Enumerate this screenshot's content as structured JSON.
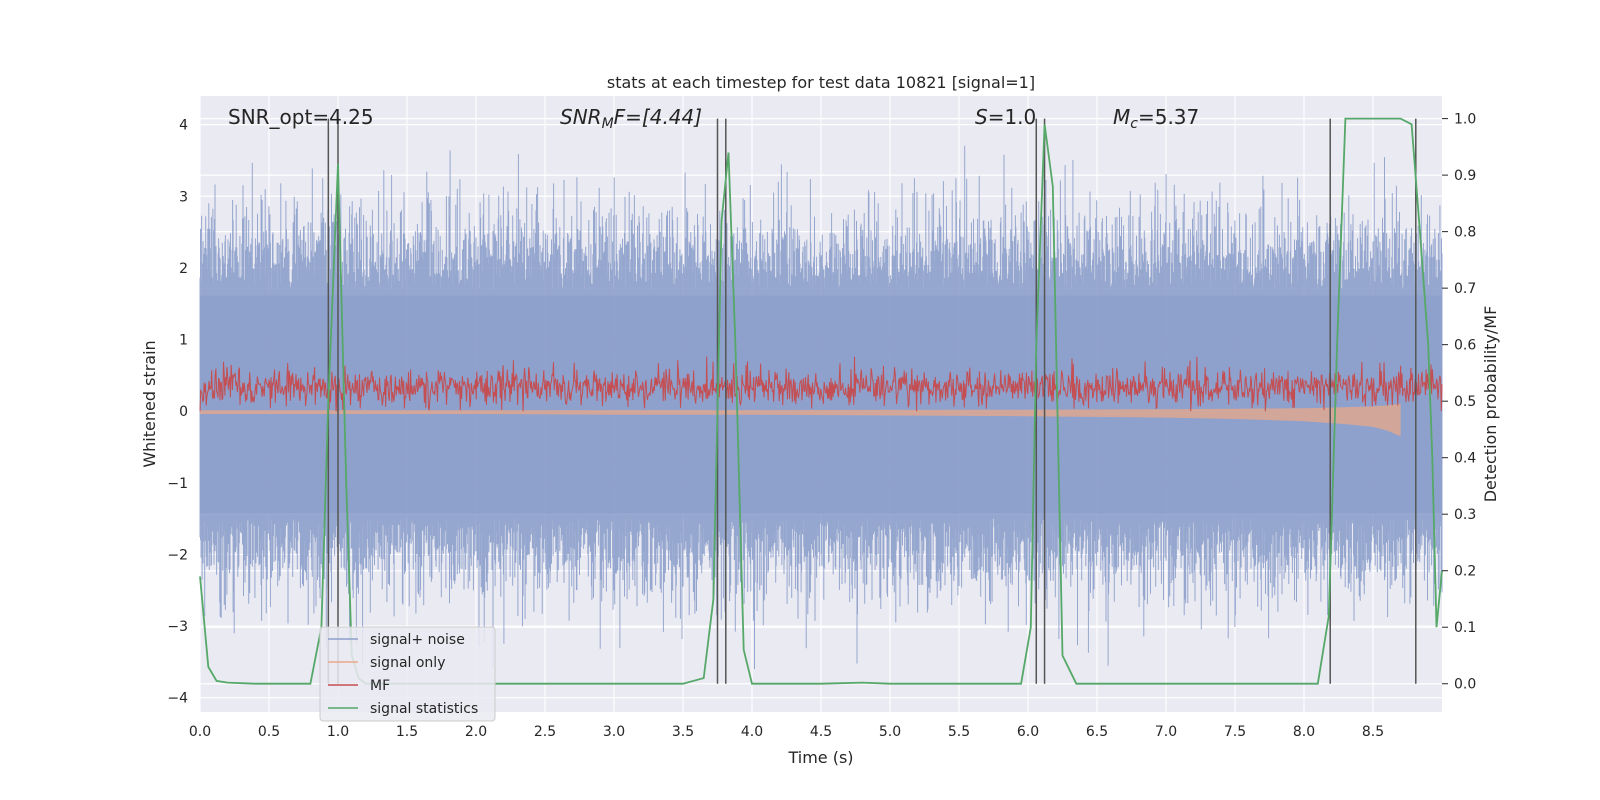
{
  "chart_data": {
    "type": "line",
    "title": "stats at each timestep for test data 10821 [signal=1]",
    "xlabel": "Time (s)",
    "ylabel": "Whitened strain",
    "ylabel_right": "Detection probability/MF",
    "xlim": [
      0.0,
      9.0
    ],
    "ylim": [
      -4.2,
      4.4
    ],
    "ylim_right": [
      -0.05,
      1.04
    ],
    "xticks": [
      0.0,
      0.5,
      1.0,
      1.5,
      2.0,
      2.5,
      3.0,
      3.5,
      4.0,
      4.5,
      5.0,
      5.5,
      6.0,
      6.5,
      7.0,
      7.5,
      8.0,
      8.5
    ],
    "yticks": [
      -4,
      -3,
      -2,
      -1,
      0,
      1,
      2,
      3,
      4
    ],
    "yticks_right": [
      0.0,
      0.1,
      0.2,
      0.3,
      0.4,
      0.5,
      0.6,
      0.7,
      0.8,
      0.9,
      1.0
    ],
    "xtick_labels": [
      "0.0",
      "0.5",
      "1.0",
      "1.5",
      "2.0",
      "2.5",
      "3.0",
      "3.5",
      "4.0",
      "4.5",
      "5.0",
      "5.5",
      "6.0",
      "6.5",
      "7.0",
      "7.5",
      "8.0",
      "8.5"
    ],
    "ytick_labels": [
      "−4",
      "−3",
      "−2",
      "−1",
      "0",
      "1",
      "2",
      "3",
      "4"
    ],
    "ytick_labels_right": [
      "0.0",
      "0.1",
      "0.2",
      "0.3",
      "0.4",
      "0.5",
      "0.6",
      "0.7",
      "0.8",
      "0.9",
      "1.0"
    ],
    "grid": true,
    "legend_position": "lower-left",
    "annotations": {
      "snr_opt": "SNR_opt=4.25",
      "snr_mf_base": "SNR",
      "snr_mf_sub": "M",
      "snr_mf_rest": "F=[4.44]",
      "s_base": "S",
      "s_rest": "=1.0",
      "mc_base": "M",
      "mc_sub": "c",
      "mc_rest": "=5.37"
    },
    "series": [
      {
        "name": "signal+ noise",
        "color": "#8da0cb",
        "axis": "left",
        "style": "dense-noise",
        "typical_range": [
          -1.5,
          1.7
        ],
        "extreme_range": [
          -3.6,
          3.95
        ]
      },
      {
        "name": "signal only",
        "color": "#e9a88a",
        "axis": "left",
        "style": "chirp",
        "x": [
          0.0,
          1.0,
          2.0,
          3.0,
          4.0,
          5.0,
          6.0,
          7.0,
          7.5,
          8.0,
          8.3,
          8.5,
          8.6,
          8.7
        ],
        "envelope": [
          0.04,
          0.04,
          0.04,
          0.05,
          0.05,
          0.06,
          0.07,
          0.09,
          0.11,
          0.14,
          0.18,
          0.22,
          0.27,
          0.35
        ]
      },
      {
        "name": "MF",
        "color": "#c44e52",
        "axis": "left",
        "style": "noise",
        "typical_range": [
          0.0,
          0.75
        ]
      },
      {
        "name": "signal statistics",
        "color": "#55a868",
        "axis": "right",
        "x": [
          0.0,
          0.06,
          0.12,
          0.2,
          0.4,
          0.8,
          0.88,
          0.93,
          1.0,
          1.06,
          1.1,
          1.15,
          1.2,
          3.5,
          3.65,
          3.72,
          3.78,
          3.83,
          3.88,
          3.94,
          4.0,
          4.5,
          4.8,
          5.0,
          5.95,
          6.02,
          6.06,
          6.12,
          6.18,
          6.25,
          6.35,
          6.5,
          8.1,
          8.18,
          8.24,
          8.3,
          8.5,
          8.7,
          8.78,
          8.84,
          8.9,
          8.93,
          8.96,
          9.0
        ],
        "y": [
          0.19,
          0.03,
          0.005,
          0.002,
          0.0,
          0.0,
          0.1,
          0.5,
          0.92,
          0.35,
          0.05,
          0.01,
          0.0,
          0.0,
          0.01,
          0.15,
          0.82,
          0.94,
          0.6,
          0.06,
          0.0,
          0.0,
          0.002,
          0.0,
          0.0,
          0.1,
          0.6,
          0.99,
          0.88,
          0.05,
          0.0,
          0.0,
          0.0,
          0.12,
          0.6,
          1.0,
          1.0,
          1.0,
          0.99,
          0.8,
          0.6,
          0.4,
          0.1,
          0.2
        ]
      }
    ],
    "vertical_lines": {
      "color": "#555555",
      "axis": "right",
      "ymax": 1.0,
      "ymin": 0.0,
      "x": [
        0.93,
        1.0,
        3.75,
        3.81,
        6.06,
        6.12,
        8.19,
        8.81
      ]
    }
  }
}
